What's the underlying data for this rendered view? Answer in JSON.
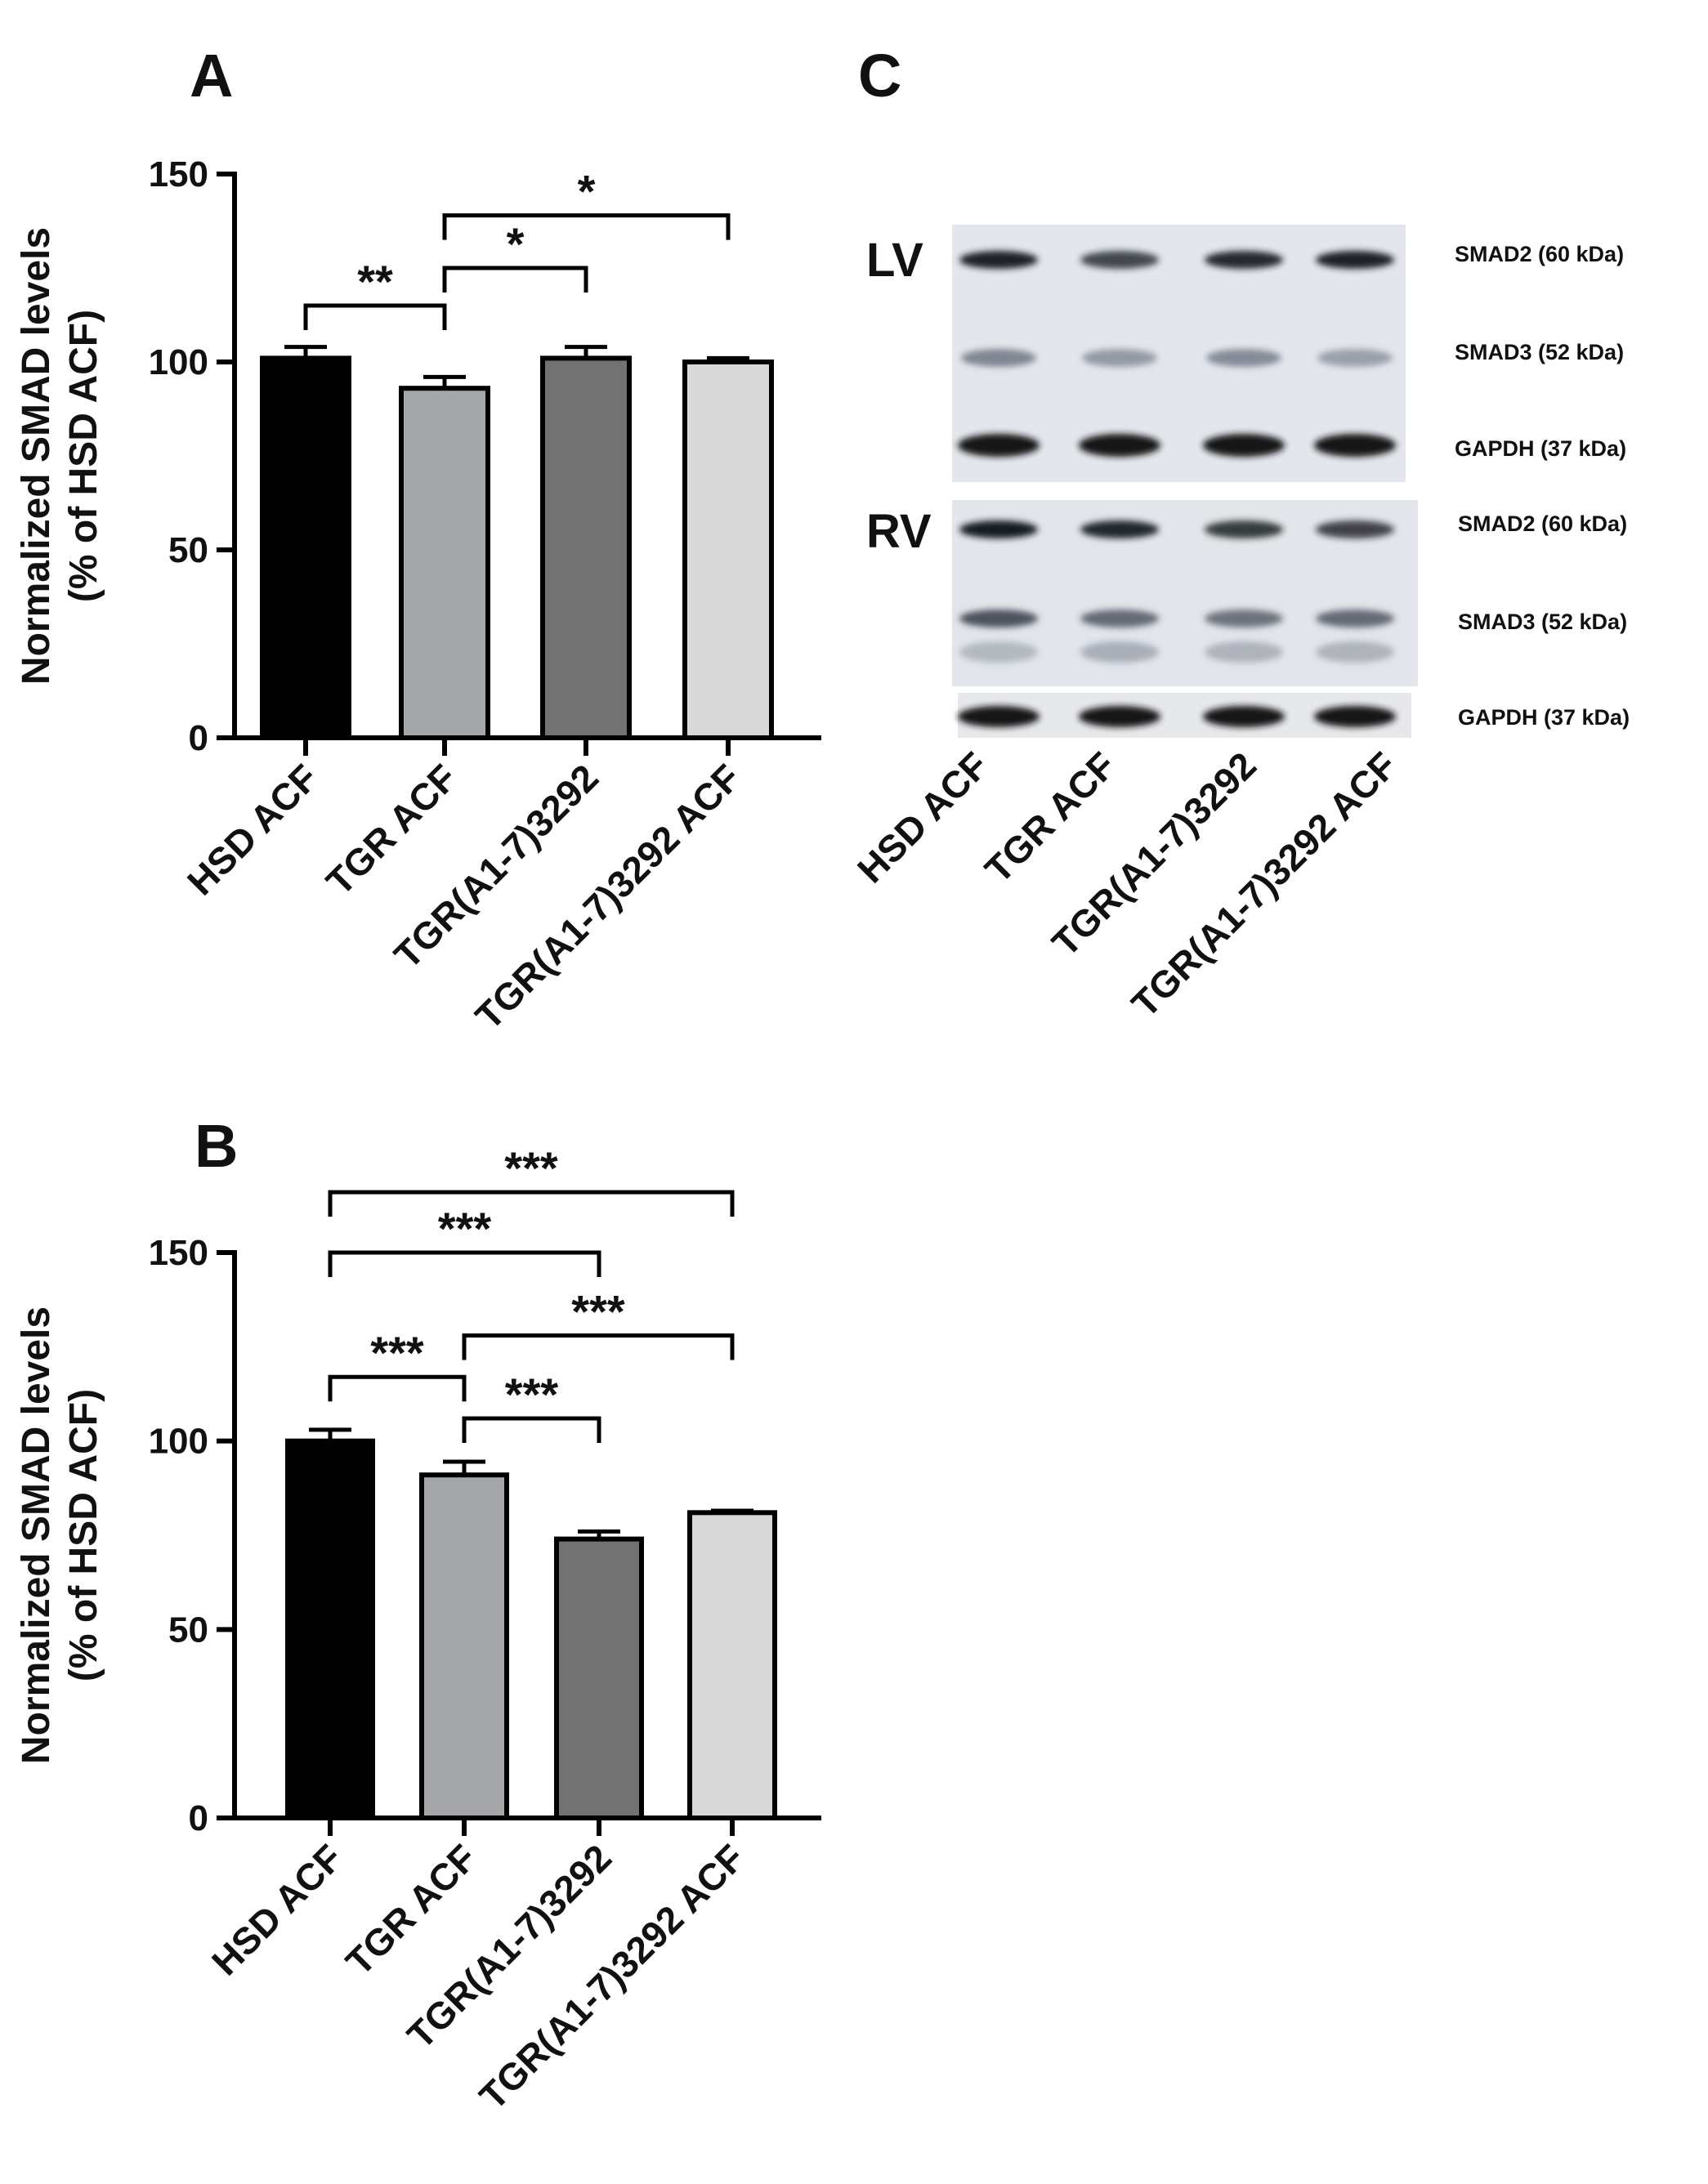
{
  "panels": {
    "A": {
      "letter": "A"
    },
    "B": {
      "letter": "B"
    },
    "C": {
      "letter": "C"
    }
  },
  "chart_data": [
    {
      "panel": "A",
      "type": "bar",
      "categories": [
        "HSD ACF",
        "TGR ACF",
        "TGR(A1-7)3292",
        "TGR(A1-7)3292 ACF"
      ],
      "values": [
        101,
        93,
        101,
        100
      ],
      "errors": [
        3,
        3,
        3,
        1
      ],
      "colors": [
        "#000000",
        "#a5a6aa",
        "#727272",
        "#d8d8d8"
      ],
      "ylabel": "Normalized SMAD levels",
      "ylabel2": "(% of HSD ACF)",
      "ylim": [
        0,
        150
      ],
      "yticks": [
        0,
        50,
        100,
        150
      ],
      "comparisons": [
        {
          "from": 0,
          "to": 1,
          "label": "**",
          "y": 115
        },
        {
          "from": 1,
          "to": 2,
          "label": "*",
          "y": 125
        },
        {
          "from": 1,
          "to": 3,
          "label": "*",
          "y": 139
        }
      ]
    },
    {
      "panel": "B",
      "type": "bar",
      "categories": [
        "HSD ACF",
        "TGR ACF",
        "TGR(A1-7)3292",
        "TGR(A1-7)3292 ACF"
      ],
      "values": [
        100,
        91,
        74,
        81
      ],
      "errors": [
        3,
        3.5,
        2,
        0.5
      ],
      "colors": [
        "#000000",
        "#a5a6aa",
        "#727272",
        "#d8d8d8"
      ],
      "ylabel": "Normalized SMAD levels",
      "ylabel2": "(% of HSD ACF)",
      "ylim": [
        0,
        150
      ],
      "yticks": [
        0,
        50,
        100,
        150
      ],
      "comparisons": [
        {
          "from": 1,
          "to": 2,
          "label": "***",
          "y": 106
        },
        {
          "from": 0,
          "to": 1,
          "label": "***",
          "y": 117
        },
        {
          "from": 1,
          "to": 3,
          "label": "***",
          "y": 128
        },
        {
          "from": 0,
          "to": 2,
          "label": "***",
          "y": 150
        },
        {
          "from": 0,
          "to": 3,
          "label": "***",
          "y": 166
        }
      ]
    }
  ],
  "blot": {
    "lanes": [
      "HSD ACF",
      "TGR ACF",
      "TGR(A1-7)3292",
      "TGR(A1-7)3292 ACF"
    ],
    "LV": {
      "tag": "LV",
      "bands": [
        "SMAD2 (60 kDa)",
        "SMAD3 (52 kDa)",
        "GAPDH (37 kDa)"
      ]
    },
    "RV": {
      "tag": "RV",
      "bands": [
        "SMAD2 (60 kDa)",
        "SMAD3 (52 kDa)",
        "GAPDH (37 kDa)"
      ]
    }
  }
}
